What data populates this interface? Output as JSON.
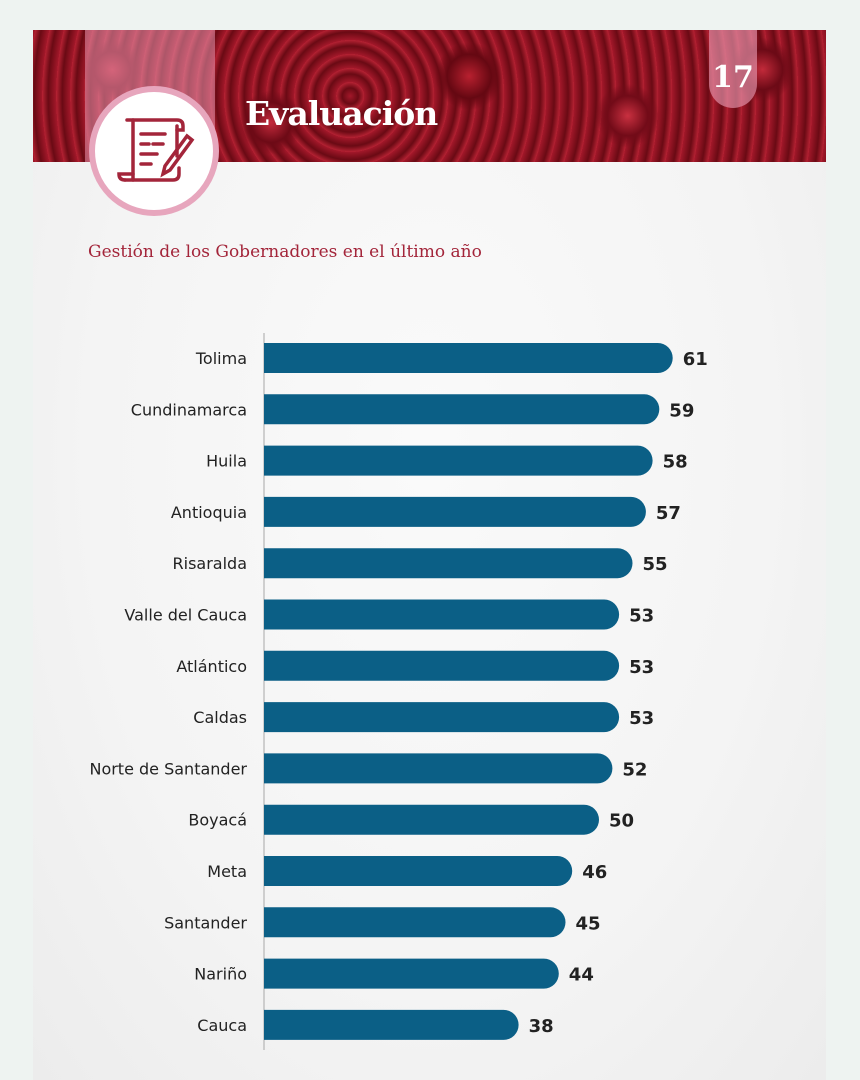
{
  "header": {
    "title": "Evaluación",
    "page_number": "17",
    "icon": "document-with-pen-icon"
  },
  "colors": {
    "bar": "#0b5f86",
    "subtitle": "#a3253a",
    "banner": "#8a1020",
    "accent_pink": "#e7a6bd"
  },
  "chart_data": {
    "type": "bar",
    "orientation": "horizontal",
    "title": "Gestión de los Gobernadores en el último año",
    "categories": [
      "Tolima",
      "Cundinamarca",
      "Huila",
      "Antioquia",
      "Risaralda",
      "Valle del Cauca",
      "Atlántico",
      "Caldas",
      "Norte de Santander",
      "Boyacá",
      "Meta",
      "Santander",
      "Nariño",
      "Cauca"
    ],
    "values": [
      61,
      59,
      58,
      57,
      55,
      53,
      53,
      53,
      52,
      50,
      46,
      45,
      44,
      38
    ],
    "data_labels": true,
    "grid": false
  }
}
